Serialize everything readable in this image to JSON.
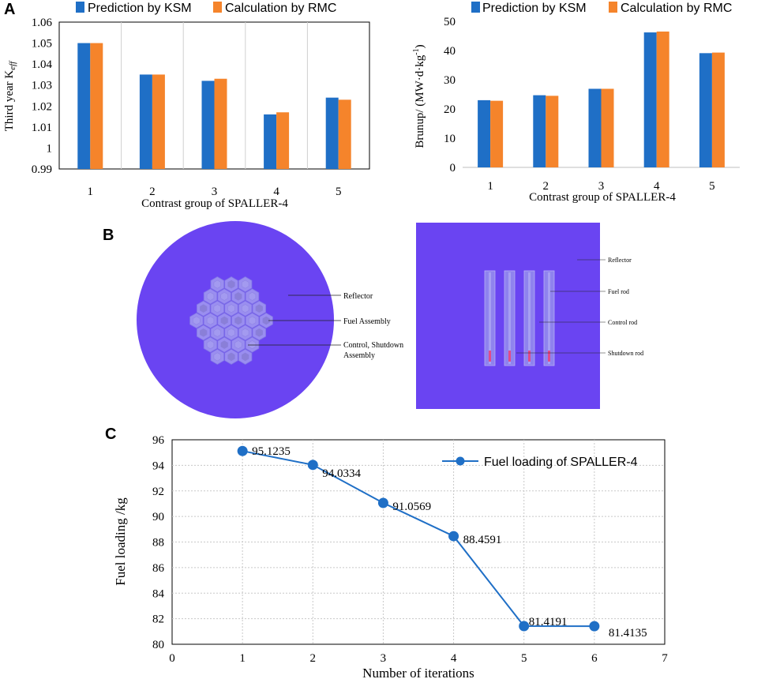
{
  "panels": {
    "a": "A",
    "b": "B",
    "c": "C"
  },
  "colors": {
    "ksm": "#1f6fc6",
    "rmc": "#f5842b",
    "line": "#1f6fc6",
    "reactor": "#6a44f2",
    "assembly": "#9a8ef0",
    "grid": "#d0d0d0"
  },
  "chart_data": [
    {
      "id": "keff",
      "type": "bar",
      "title": "",
      "xlabel": "Contrast group of SPALLER-4",
      "ylabel_main": "Third year K",
      "ylabel_sub": "eff",
      "categories": [
        "1",
        "2",
        "3",
        "4",
        "5"
      ],
      "series": [
        {
          "name": "Prediction by KSM",
          "values": [
            1.05,
            1.035,
            1.032,
            1.016,
            1.024
          ]
        },
        {
          "name": "Calculation by RMC",
          "values": [
            1.05,
            1.035,
            1.033,
            1.017,
            1.023
          ]
        }
      ],
      "ylim": [
        0.99,
        1.06
      ],
      "yticks": [
        0.99,
        1,
        1.01,
        1.02,
        1.03,
        1.04,
        1.05,
        1.06
      ],
      "ytick_labels": [
        "0.99",
        "1",
        "1.01",
        "1.02",
        "1.03",
        "1.04",
        "1.05",
        "1.06"
      ],
      "legend": "top"
    },
    {
      "id": "burnup",
      "type": "bar",
      "title": "",
      "xlabel": "Contrast group of SPALLER-4",
      "ylabel_main": "Brunup/ (MW·d·kg",
      "ylabel_sup": "-1",
      "ylabel_end": ")",
      "categories": [
        "1",
        "2",
        "3",
        "4",
        "5"
      ],
      "series": [
        {
          "name": "Prediction by KSM",
          "values": [
            23.0,
            24.7,
            26.9,
            46.2,
            39.1
          ]
        },
        {
          "name": "Calculation by RMC",
          "values": [
            22.8,
            24.5,
            26.9,
            46.5,
            39.3
          ]
        }
      ],
      "ylim": [
        0,
        50
      ],
      "yticks": [
        0,
        10,
        20,
        30,
        40,
        50
      ],
      "ytick_labels": [
        "0",
        "10",
        "20",
        "30",
        "40",
        "50"
      ],
      "legend": "top"
    },
    {
      "id": "fuel",
      "type": "line",
      "title": "",
      "xlabel": "Number of iterations",
      "ylabel": "Fuel loading /kg",
      "series": [
        {
          "name": "Fuel loading of SPALLER-4",
          "x": [
            1,
            2,
            3,
            4,
            5,
            6
          ],
          "y": [
            95.1235,
            94.0334,
            91.0569,
            88.4591,
            81.4191,
            81.4135
          ],
          "labels": [
            "95.1235",
            "94.0334",
            "91.0569",
            "88.4591",
            "81.4191",
            "81.4135"
          ]
        }
      ],
      "xlim": [
        0,
        7
      ],
      "ylim": [
        80,
        96
      ],
      "xticks": [
        0,
        1,
        2,
        3,
        4,
        5,
        6,
        7
      ],
      "yticks": [
        80,
        82,
        84,
        86,
        88,
        90,
        92,
        94,
        96
      ],
      "legend": "top-right"
    }
  ],
  "core_diagram": {
    "left_labels": {
      "reflector": "Reflector",
      "fuel_assembly": "Fuel Assembly",
      "control_line1": "Control, Shutdown",
      "control_line2": "Assembly"
    },
    "right_labels": {
      "reflector": "Reflector",
      "fuel_rod": "Fuel rod",
      "control_rod": "Control rod",
      "shutdown_rod": "Shutdown rod"
    }
  }
}
